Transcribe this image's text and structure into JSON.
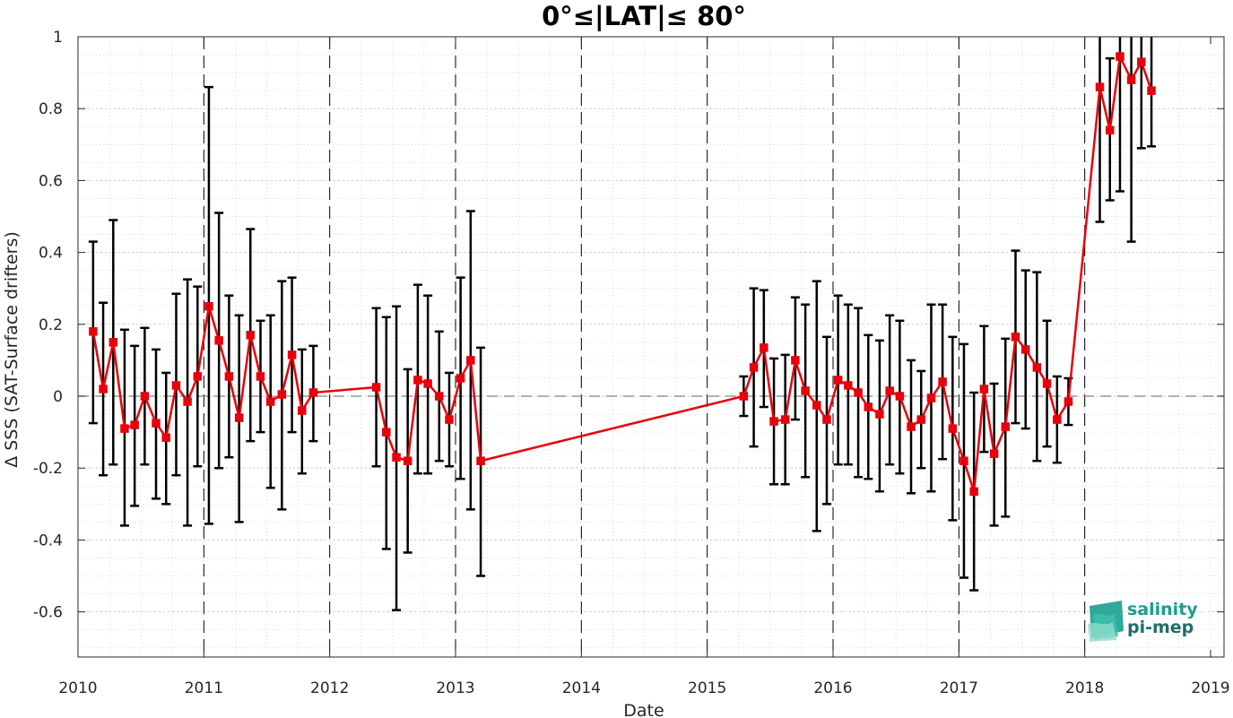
{
  "chart_data": {
    "type": "line",
    "title": "0°≤|LAT|≤ 80°",
    "xlabel": "Date",
    "ylabel": "Δ SSS (SAT-Surface drifters)",
    "xlim": [
      2010,
      2019
    ],
    "ylim": [
      -0.72,
      1.0
    ],
    "x_ticks": [
      2010,
      2011,
      2012,
      2013,
      2014,
      2015,
      2016,
      2017,
      2018,
      2019
    ],
    "x_tick_labels": [
      "2010",
      "2011",
      "2012",
      "2013",
      "2014",
      "2015",
      "2016",
      "2017",
      "2018",
      "2019"
    ],
    "y_ticks": [
      -0.6,
      -0.4,
      -0.2,
      0,
      0.2,
      0.4,
      0.6,
      0.8,
      1
    ],
    "y_tick_labels": [
      "-0.6",
      "-0.4",
      "-0.2",
      "0",
      "0.2",
      "0.4",
      "0.6",
      "0.8",
      "1"
    ],
    "grid": true,
    "year_markers": "dashed vertical lines at each year",
    "reference_line": 0,
    "series": [
      {
        "color": "#e8000b",
        "errorbar_color": "#000000",
        "marker": "square",
        "points": [
          {
            "x": 2010.12,
            "y": 0.18,
            "lo": -0.075,
            "hi": 0.43
          },
          {
            "x": 2010.2,
            "y": 0.02,
            "lo": -0.22,
            "hi": 0.26
          },
          {
            "x": 2010.28,
            "y": 0.15,
            "lo": -0.19,
            "hi": 0.49
          },
          {
            "x": 2010.37,
            "y": -0.09,
            "lo": -0.36,
            "hi": 0.185
          },
          {
            "x": 2010.45,
            "y": -0.08,
            "lo": -0.305,
            "hi": 0.14
          },
          {
            "x": 2010.53,
            "y": 0.0,
            "lo": -0.19,
            "hi": 0.19
          },
          {
            "x": 2010.62,
            "y": -0.075,
            "lo": -0.285,
            "hi": 0.13
          },
          {
            "x": 2010.7,
            "y": -0.115,
            "lo": -0.3,
            "hi": 0.065
          },
          {
            "x": 2010.78,
            "y": 0.03,
            "lo": -0.22,
            "hi": 0.285
          },
          {
            "x": 2010.87,
            "y": -0.015,
            "lo": -0.36,
            "hi": 0.325
          },
          {
            "x": 2010.95,
            "y": 0.055,
            "lo": -0.195,
            "hi": 0.305
          },
          {
            "x": 2011.04,
            "y": 0.25,
            "lo": -0.355,
            "hi": 0.86
          },
          {
            "x": 2011.12,
            "y": 0.155,
            "lo": -0.2,
            "hi": 0.51
          },
          {
            "x": 2011.2,
            "y": 0.055,
            "lo": -0.17,
            "hi": 0.28
          },
          {
            "x": 2011.28,
            "y": -0.06,
            "lo": -0.35,
            "hi": 0.225
          },
          {
            "x": 2011.37,
            "y": 0.17,
            "lo": -0.125,
            "hi": 0.465
          },
          {
            "x": 2011.45,
            "y": 0.055,
            "lo": -0.1,
            "hi": 0.21
          },
          {
            "x": 2011.53,
            "y": -0.015,
            "lo": -0.255,
            "hi": 0.225
          },
          {
            "x": 2011.62,
            "y": 0.005,
            "lo": -0.315,
            "hi": 0.32
          },
          {
            "x": 2011.7,
            "y": 0.115,
            "lo": -0.1,
            "hi": 0.33
          },
          {
            "x": 2011.78,
            "y": -0.04,
            "lo": -0.215,
            "hi": 0.13
          },
          {
            "x": 2011.87,
            "y": 0.01,
            "lo": -0.125,
            "hi": 0.14
          },
          {
            "x": 2012.37,
            "y": 0.025,
            "lo": -0.195,
            "hi": 0.245
          },
          {
            "x": 2012.45,
            "y": -0.1,
            "lo": -0.425,
            "hi": 0.22
          },
          {
            "x": 2012.53,
            "y": -0.17,
            "lo": -0.595,
            "hi": 0.25
          },
          {
            "x": 2012.62,
            "y": -0.18,
            "lo": -0.435,
            "hi": 0.075
          },
          {
            "x": 2012.7,
            "y": 0.045,
            "lo": -0.215,
            "hi": 0.31
          },
          {
            "x": 2012.78,
            "y": 0.035,
            "lo": -0.215,
            "hi": 0.28
          },
          {
            "x": 2012.87,
            "y": 0.0,
            "lo": -0.18,
            "hi": 0.18
          },
          {
            "x": 2012.95,
            "y": -0.065,
            "lo": -0.195,
            "hi": 0.065
          },
          {
            "x": 2013.04,
            "y": 0.05,
            "lo": -0.23,
            "hi": 0.33
          },
          {
            "x": 2013.12,
            "y": 0.1,
            "lo": -0.315,
            "hi": 0.515
          },
          {
            "x": 2013.2,
            "y": -0.18,
            "lo": -0.5,
            "hi": 0.135
          },
          {
            "x": 2015.29,
            "y": 0.0,
            "lo": -0.055,
            "hi": 0.055
          },
          {
            "x": 2015.37,
            "y": 0.08,
            "lo": -0.14,
            "hi": 0.3
          },
          {
            "x": 2015.45,
            "y": 0.135,
            "lo": -0.03,
            "hi": 0.295
          },
          {
            "x": 2015.53,
            "y": -0.07,
            "lo": -0.245,
            "hi": 0.105
          },
          {
            "x": 2015.62,
            "y": -0.065,
            "lo": -0.245,
            "hi": 0.115
          },
          {
            "x": 2015.7,
            "y": 0.1,
            "lo": -0.065,
            "hi": 0.275
          },
          {
            "x": 2015.78,
            "y": 0.015,
            "lo": -0.225,
            "hi": 0.255
          },
          {
            "x": 2015.87,
            "y": -0.025,
            "lo": -0.375,
            "hi": 0.32
          },
          {
            "x": 2015.95,
            "y": -0.065,
            "lo": -0.3,
            "hi": 0.165
          },
          {
            "x": 2016.04,
            "y": 0.045,
            "lo": -0.19,
            "hi": 0.28
          },
          {
            "x": 2016.12,
            "y": 0.03,
            "lo": -0.19,
            "hi": 0.255
          },
          {
            "x": 2016.2,
            "y": 0.01,
            "lo": -0.225,
            "hi": 0.245
          },
          {
            "x": 2016.28,
            "y": -0.03,
            "lo": -0.23,
            "hi": 0.17
          },
          {
            "x": 2016.37,
            "y": -0.05,
            "lo": -0.265,
            "hi": 0.155
          },
          {
            "x": 2016.45,
            "y": 0.015,
            "lo": -0.19,
            "hi": 0.225
          },
          {
            "x": 2016.53,
            "y": 0.0,
            "lo": -0.215,
            "hi": 0.21
          },
          {
            "x": 2016.62,
            "y": -0.085,
            "lo": -0.27,
            "hi": 0.1
          },
          {
            "x": 2016.7,
            "y": -0.065,
            "lo": -0.2,
            "hi": 0.07
          },
          {
            "x": 2016.78,
            "y": -0.005,
            "lo": -0.265,
            "hi": 0.255
          },
          {
            "x": 2016.87,
            "y": 0.04,
            "lo": -0.175,
            "hi": 0.255
          },
          {
            "x": 2016.95,
            "y": -0.09,
            "lo": -0.345,
            "hi": 0.165
          },
          {
            "x": 2017.04,
            "y": -0.18,
            "lo": -0.505,
            "hi": 0.145
          },
          {
            "x": 2017.12,
            "y": -0.265,
            "lo": -0.54,
            "hi": 0.01
          },
          {
            "x": 2017.2,
            "y": 0.02,
            "lo": -0.155,
            "hi": 0.195
          },
          {
            "x": 2017.28,
            "y": -0.16,
            "lo": -0.36,
            "hi": 0.035
          },
          {
            "x": 2017.37,
            "y": -0.085,
            "lo": -0.335,
            "hi": 0.16
          },
          {
            "x": 2017.45,
            "y": 0.165,
            "lo": -0.075,
            "hi": 0.405
          },
          {
            "x": 2017.53,
            "y": 0.13,
            "lo": -0.09,
            "hi": 0.35
          },
          {
            "x": 2017.62,
            "y": 0.08,
            "lo": -0.18,
            "hi": 0.345
          },
          {
            "x": 2017.7,
            "y": 0.035,
            "lo": -0.14,
            "hi": 0.21
          },
          {
            "x": 2017.78,
            "y": -0.065,
            "lo": -0.185,
            "hi": 0.055
          },
          {
            "x": 2017.87,
            "y": -0.015,
            "lo": -0.08,
            "hi": 0.05
          },
          {
            "x": 2018.12,
            "y": 0.86,
            "lo": 0.485,
            "hi": 1.0
          },
          {
            "x": 2018.2,
            "y": 0.74,
            "lo": 0.545,
            "hi": 0.94
          },
          {
            "x": 2018.28,
            "y": 0.945,
            "lo": 0.57,
            "hi": 1.0
          },
          {
            "x": 2018.37,
            "y": 0.88,
            "lo": 0.43,
            "hi": 1.0
          },
          {
            "x": 2018.45,
            "y": 0.93,
            "lo": 0.69,
            "hi": 1.0
          },
          {
            "x": 2018.53,
            "y": 0.85,
            "lo": 0.695,
            "hi": 1.0
          }
        ]
      }
    ]
  },
  "logo": {
    "line1": "salinity",
    "line2": "pi-mep",
    "color": "#1a9e8f"
  }
}
